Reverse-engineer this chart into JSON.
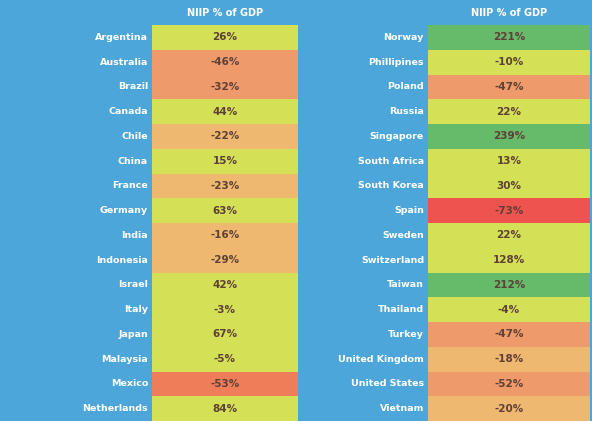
{
  "left_countries": [
    "Argentina",
    "Australia",
    "Brazil",
    "Canada",
    "Chile",
    "China",
    "France",
    "Germany",
    "India",
    "Indonesia",
    "Israel",
    "Italy",
    "Japan",
    "Malaysia",
    "Mexico",
    "Netherlands"
  ],
  "left_values": [
    "26%",
    "-46%",
    "-32%",
    "44%",
    "-22%",
    "15%",
    "-23%",
    "63%",
    "-16%",
    "-29%",
    "42%",
    "-3%",
    "67%",
    "-5%",
    "-53%",
    "84%"
  ],
  "left_colors": [
    "#d4e157",
    "#ef9a6a",
    "#ef9a6a",
    "#d4e157",
    "#efb870",
    "#d4e157",
    "#efb870",
    "#d4e157",
    "#efb870",
    "#efb870",
    "#d4e157",
    "#d4e157",
    "#d4e157",
    "#d4e157",
    "#ef7d5a",
    "#d4e157"
  ],
  "right_countries": [
    "Norway",
    "Phillipines",
    "Poland",
    "Russia",
    "Singapore",
    "South Africa",
    "South Korea",
    "Spain",
    "Sweden",
    "Switzerland",
    "Taiwan",
    "Thailand",
    "Turkey",
    "United Kingdom",
    "United States",
    "Vietnam"
  ],
  "right_values": [
    "221%",
    "-10%",
    "-47%",
    "22%",
    "239%",
    "13%",
    "30%",
    "-73%",
    "22%",
    "128%",
    "212%",
    "-4%",
    "-47%",
    "-18%",
    "-52%",
    "-20%"
  ],
  "right_colors": [
    "#66bb6a",
    "#d4e157",
    "#ef9a6a",
    "#d4e157",
    "#66bb6a",
    "#d4e157",
    "#d4e157",
    "#ef5350",
    "#d4e157",
    "#d4e157",
    "#66bb6a",
    "#d4e157",
    "#ef9a6a",
    "#efb870",
    "#ef9a6a",
    "#efb870"
  ],
  "header": "NIIP % of GDP",
  "bg_color": "#4da6d9",
  "header_text_color": "white",
  "country_text_color": "white",
  "value_text_color": "#5d4037",
  "fig_width": 5.92,
  "fig_height": 4.21,
  "dpi": 100
}
